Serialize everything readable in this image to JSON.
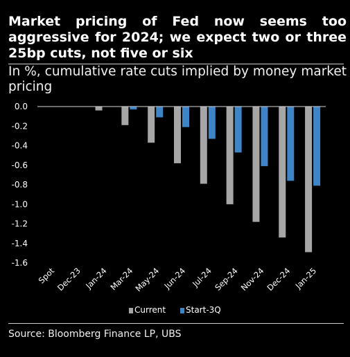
{
  "header": {
    "title": "Market pricing of Fed now seems too aggressive for 2024; we expect two or three 25bp cuts, not five or six",
    "subtitle": "In %, cumulative rate cuts implied by money market pricing"
  },
  "footer": {
    "source": "Source: Bloomberg Finance LP, UBS"
  },
  "colors": {
    "current": "#a6a6a6",
    "start3q": "#3d85c6",
    "background": "#000000",
    "text": "#ffffff"
  },
  "chart_data": {
    "type": "bar",
    "categories": [
      "Spot",
      "Dec-23",
      "Jan-24",
      "Mar-24",
      "May-24",
      "Jun-24",
      "Jul-24",
      "Sep-24",
      "Nov-24",
      "Dec-24",
      "Jan-25"
    ],
    "series": [
      {
        "name": "Current",
        "values": [
          0,
          0,
          -0.04,
          -0.19,
          -0.37,
          -0.58,
          -0.79,
          -1.0,
          -1.18,
          -1.34,
          -1.49
        ]
      },
      {
        "name": "Start-3Q",
        "values": [
          0,
          0,
          null,
          -0.03,
          -0.11,
          -0.21,
          -0.33,
          -0.47,
          -0.61,
          -0.76,
          -0.81
        ]
      }
    ],
    "ylim": [
      -1.6,
      0.0
    ],
    "yticks": [
      "0.0",
      "-0.2",
      "-0.4",
      "-0.6",
      "-0.8",
      "-1.0",
      "-1.2",
      "-1.4",
      "-1.6"
    ],
    "legend_position": "bottom",
    "grid": false
  }
}
